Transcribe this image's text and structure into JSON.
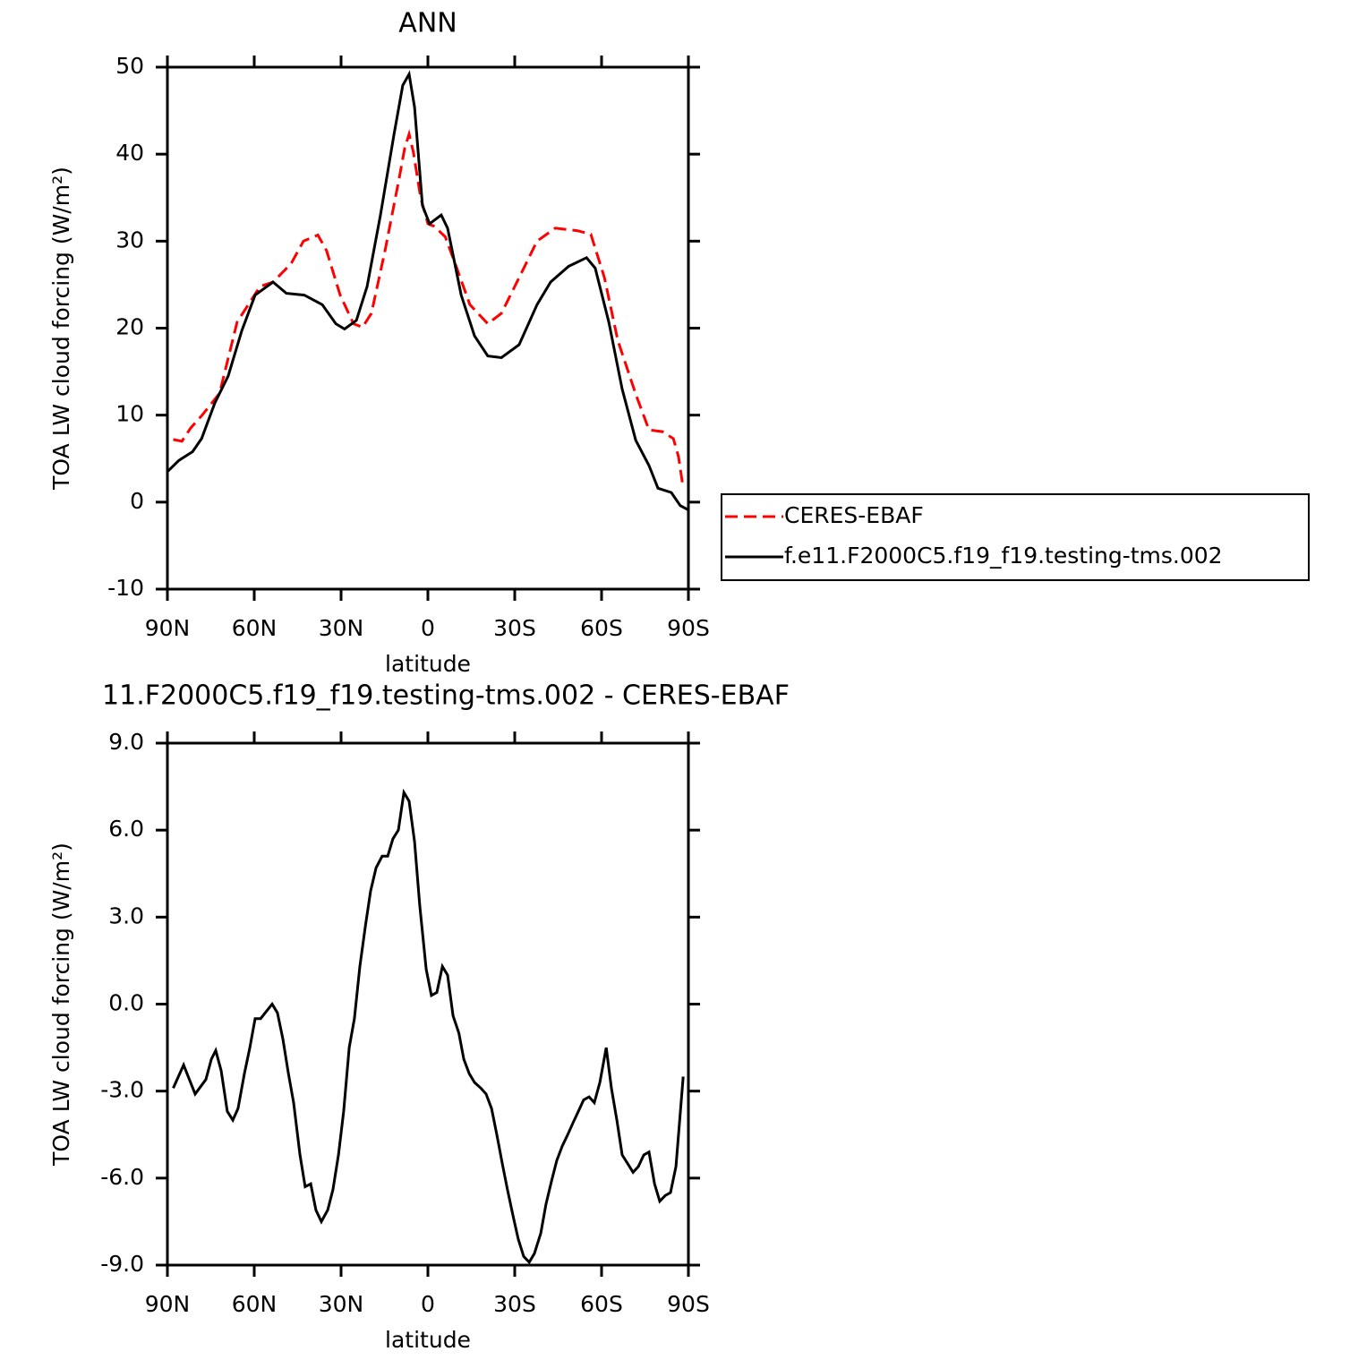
{
  "chart_data": [
    {
      "type": "line",
      "title": "ANN",
      "xlabel": "latitude",
      "ylabel": "TOA LW cloud forcing (W/m²)",
      "xlim": [
        90,
        -90
      ],
      "xticks": [
        {
          "value": 90,
          "label": "90N"
        },
        {
          "value": 60,
          "label": "60N"
        },
        {
          "value": 30,
          "label": "30N"
        },
        0,
        {
          "value": -30,
          "label": "30S"
        },
        {
          "value": -60,
          "label": "60S"
        },
        {
          "value": -90,
          "label": "90S"
        }
      ],
      "ylim": [
        -10,
        50
      ],
      "yticks": [
        50,
        40,
        30,
        20,
        10,
        0,
        -10
      ],
      "legend": "right",
      "series": [
        {
          "name": "CERES-EBAF",
          "color": "#ff0000",
          "linestyle": "dashed",
          "x": [
            88,
            85,
            82,
            78,
            72,
            65.9,
            58,
            53.5,
            47.3,
            43,
            38,
            35,
            30.3,
            25.7,
            22.6,
            19.5,
            14.8,
            10,
            8,
            6.5,
            5,
            2.5,
            0,
            -2.2,
            -6,
            -10,
            -14.5,
            -20.7,
            -25.4,
            -31.5,
            -37.7,
            -44,
            -51.7,
            -56.3,
            -61,
            -65.6,
            -71.8,
            -76.4,
            -81,
            -84.8,
            -86.6,
            -88.2
          ],
          "values": [
            7.2,
            7.0,
            8.5,
            10,
            12.5,
            20.7,
            24.8,
            25.3,
            27.4,
            30,
            30.7,
            28.9,
            23.8,
            20.5,
            20.1,
            21.7,
            28.9,
            37.1,
            40.7,
            42.3,
            40.2,
            35,
            32,
            31.7,
            30.5,
            26.9,
            22.7,
            20.5,
            21.7,
            25.8,
            30,
            31.5,
            31.2,
            30.8,
            25.8,
            18.6,
            12.4,
            8.3,
            8.1,
            7.3,
            5.2,
            1.6
          ]
        },
        {
          "name": "f.e11.F2000C5.f19_f19.testing-tms.002",
          "color": "#000000",
          "linestyle": "solid",
          "x": [
            90,
            86,
            81.3,
            78.2,
            73.6,
            69,
            64.3,
            59.7,
            53.5,
            48.9,
            42.7,
            36.5,
            31.8,
            28.8,
            24.7,
            21,
            16.4,
            11.7,
            8.7,
            6.5,
            4.6,
            1.9,
            -0.6,
            -4.6,
            -6.8,
            -11.5,
            -16.1,
            -20.7,
            -25.4,
            -31.5,
            -37.7,
            -42.4,
            -48.6,
            -54.8,
            -57.8,
            -62.5,
            -67.1,
            -71.8,
            -76.4,
            -79.5,
            -84.1,
            -87.2,
            -90
          ],
          "values": [
            3.5,
            4.8,
            5.8,
            7.3,
            11.4,
            14.5,
            19.7,
            23.8,
            25.3,
            24,
            23.8,
            22.7,
            20.5,
            19.9,
            20.9,
            24.8,
            33,
            42.3,
            47.9,
            49.2,
            45.4,
            34.1,
            32,
            33,
            31.5,
            23.8,
            19.1,
            16.8,
            16.6,
            18.1,
            22.7,
            25.3,
            27.1,
            28.1,
            26.9,
            20.7,
            13,
            7.1,
            4.2,
            1.6,
            1.1,
            -0.4,
            -0.9
          ]
        }
      ]
    },
    {
      "type": "line",
      "title": "11.F2000C5.f19_f19.testing-tms.002 - CERES-EBAF",
      "xlabel": "latitude",
      "ylabel": "TOA LW cloud forcing (W/m²)",
      "xlim": [
        90,
        -90
      ],
      "xticks": [
        {
          "value": 90,
          "label": "90N"
        },
        {
          "value": 60,
          "label": "60N"
        },
        {
          "value": 30,
          "label": "30N"
        },
        0,
        {
          "value": -30,
          "label": "30S"
        },
        {
          "value": -60,
          "label": "60S"
        },
        {
          "value": -90,
          "label": "90S"
        }
      ],
      "ylim": [
        -9,
        9
      ],
      "yticks": [
        {
          "value": 9,
          "label": "9.0"
        },
        {
          "value": 6,
          "label": "6.0"
        },
        {
          "value": 3,
          "label": "3.0"
        },
        {
          "value": 0,
          "label": "0.0"
        },
        {
          "value": -3,
          "label": "-3.0"
        },
        {
          "value": -6,
          "label": "-6.0"
        },
        {
          "value": -9,
          "label": "-9.0"
        }
      ],
      "series": [
        {
          "color": "#000000",
          "linestyle": "solid",
          "x": [
            88,
            84.4,
            80.4,
            76.7,
            74.8,
            73.3,
            71.4,
            69.3,
            67.4,
            65.6,
            63.4,
            61.5,
            59.7,
            57.8,
            53.8,
            52,
            50.1,
            48.2,
            46.4,
            44.2,
            42.4,
            40.5,
            38.7,
            36.8,
            34.6,
            32.8,
            30.9,
            29.1,
            27.2,
            25.4,
            23.5,
            21.6,
            19.8,
            17.9,
            15.8,
            13.9,
            12.1,
            10.2,
            8.3,
            6.5,
            4.6,
            2.8,
            0.6,
            -1.2,
            -3.1,
            -5,
            -6.8,
            -8.7,
            -10.7,
            -12.4,
            -14.3,
            -16.1,
            -18.3,
            -20.1,
            -22,
            -23.8,
            -25.7,
            -27.5,
            -29.4,
            -31.2,
            -33.1,
            -35,
            -36.8,
            -39,
            -40.8,
            -42.7,
            -44.5,
            -46.4,
            -48.3,
            -50.1,
            -52,
            -53.8,
            -55.7,
            -57.5,
            -59.4,
            -61.6,
            -63.4,
            -65.3,
            -67.1,
            -69,
            -70.9,
            -72.7,
            -74.6,
            -76.4,
            -78.3,
            -80.1,
            -82,
            -83.8,
            -85.7,
            -88.2
          ],
          "values": [
            -2.9,
            -2.1,
            -3.1,
            -2.6,
            -1.9,
            -1.6,
            -2.3,
            -3.7,
            -4.0,
            -3.6,
            -2.4,
            -1.5,
            -0.5,
            -0.5,
            0,
            -0.3,
            -1.2,
            -2.4,
            -3.4,
            -5.2,
            -6.3,
            -6.2,
            -7.1,
            -7.5,
            -7.1,
            -6.4,
            -5.2,
            -3.7,
            -1.5,
            -0.5,
            1.3,
            2.7,
            3.9,
            4.7,
            5.1,
            5.1,
            5.7,
            6.0,
            7.3,
            7.0,
            5.6,
            3.4,
            1.2,
            0.3,
            0.4,
            1.3,
            1.0,
            -0.4,
            -1.0,
            -1.9,
            -2.4,
            -2.7,
            -2.9,
            -3.1,
            -3.6,
            -4.5,
            -5.5,
            -6.4,
            -7.3,
            -8.1,
            -8.7,
            -8.9,
            -8.6,
            -7.9,
            -6.9,
            -6.1,
            -5.4,
            -4.9,
            -4.5,
            -4.1,
            -3.7,
            -3.3,
            -3.2,
            -3.4,
            -2.7,
            -1.5,
            -2.9,
            -4.0,
            -5.2,
            -5.5,
            -5.8,
            -5.6,
            -5.2,
            -5.1,
            -6.2,
            -6.8,
            -6.6,
            -6.5,
            -5.6,
            -2.5
          ]
        }
      ]
    }
  ]
}
